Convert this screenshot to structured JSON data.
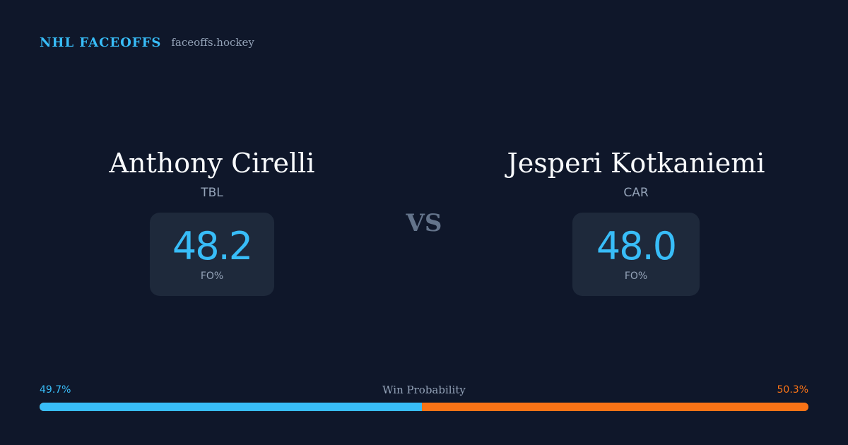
{
  "brand": {
    "title": "NHL FACEOFFS",
    "site": "faceoffs.hockey"
  },
  "matchup": {
    "left": {
      "name": "Anthony Cirelli",
      "team": "TBL",
      "stat_value": "48.2",
      "stat_label": "FO%"
    },
    "vs_label": "VS",
    "right": {
      "name": "Jesperi Kotkaniemi",
      "team": "CAR",
      "stat_value": "48.0",
      "stat_label": "FO%"
    }
  },
  "win_probability": {
    "title": "Win Probability",
    "left_label": "49.7%",
    "right_label": "50.3%",
    "left_value": 49.7,
    "right_value": 50.3,
    "left_color": "#38bdf8",
    "right_color": "#f97316"
  },
  "colors": {
    "background": "#0f172a",
    "panel": "#1e293b",
    "accent": "#38bdf8",
    "muted": "#94a3b8",
    "vs": "#64748b"
  }
}
